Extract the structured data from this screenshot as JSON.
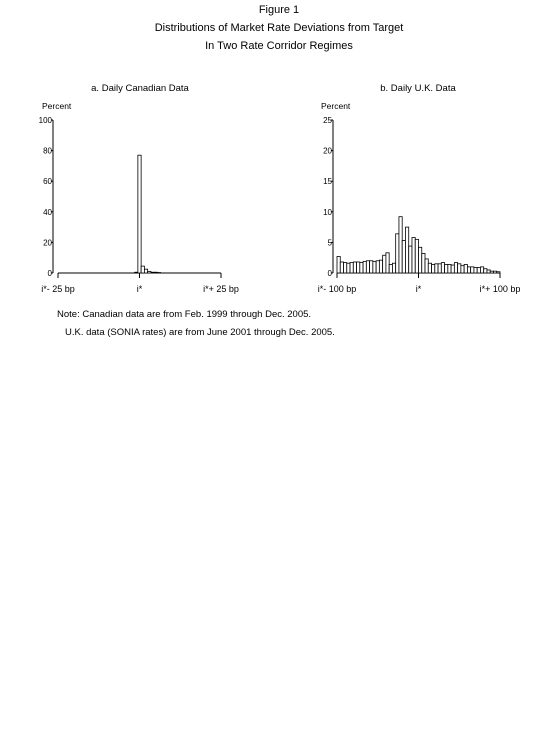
{
  "figure": {
    "title_lines": [
      "Figure 1",
      "Distributions of Market Rate Deviations from Target",
      "In Two Rate Corridor Regimes"
    ],
    "notes": [
      "Note: Canadian data are from Feb. 1999 through Dec. 2005.",
      "U.K. data (SONIA rates) are from June 2001 through Dec. 2005."
    ]
  },
  "chart_data": [
    {
      "type": "bar",
      "title": "a. Daily Canadian Data",
      "ylabel": "Percent",
      "ylim": [
        0,
        100
      ],
      "yticks": [
        0,
        20,
        40,
        60,
        80,
        100
      ],
      "xlim": [
        -25,
        25
      ],
      "xtick_labels": [
        "i*- 25 bp",
        "i*",
        "i*+ 25 bp"
      ],
      "bin_width": 1,
      "x": [
        -1,
        0,
        1,
        2,
        3,
        4,
        5,
        6
      ],
      "values": [
        0.5,
        77,
        4.5,
        2.5,
        1,
        0.5,
        0.5,
        0.3
      ],
      "grid": false
    },
    {
      "type": "bar",
      "title": "b. Daily U.K. Data",
      "ylabel": "Percent",
      "ylim": [
        0,
        25
      ],
      "yticks": [
        0,
        5,
        10,
        15,
        20,
        25
      ],
      "xlim": [
        -100,
        100
      ],
      "xtick_labels": [
        "i*- 100 bp",
        "i*",
        "i*+ 100 bp"
      ],
      "bin_width": 4,
      "x": [
        -98,
        -94,
        -90,
        -86,
        -82,
        -78,
        -74,
        -70,
        -66,
        -62,
        -58,
        -54,
        -50,
        -46,
        -42,
        -38,
        -34,
        -30,
        -26,
        -22,
        -18,
        -14,
        -10,
        -6,
        -2,
        2,
        6,
        10,
        14,
        18,
        22,
        26,
        30,
        34,
        38,
        42,
        46,
        50,
        54,
        58,
        62,
        66,
        70,
        74,
        78,
        82,
        86,
        90,
        94,
        98
      ],
      "values": [
        2.7,
        1.8,
        1.7,
        1.6,
        1.7,
        1.8,
        1.8,
        1.7,
        1.9,
        2.0,
        2.0,
        1.9,
        2.0,
        2.1,
        2.9,
        3.3,
        1.4,
        1.6,
        6.4,
        9.2,
        5.3,
        7.5,
        4.4,
        5.8,
        5.5,
        4.2,
        3.2,
        2.3,
        1.6,
        1.4,
        1.5,
        1.5,
        1.7,
        1.4,
        1.4,
        1.3,
        1.7,
        1.5,
        1.2,
        1.4,
        1.0,
        1.0,
        0.9,
        0.9,
        1.0,
        0.7,
        0.5,
        0.3,
        0.3,
        0.2
      ],
      "grid": false
    }
  ]
}
